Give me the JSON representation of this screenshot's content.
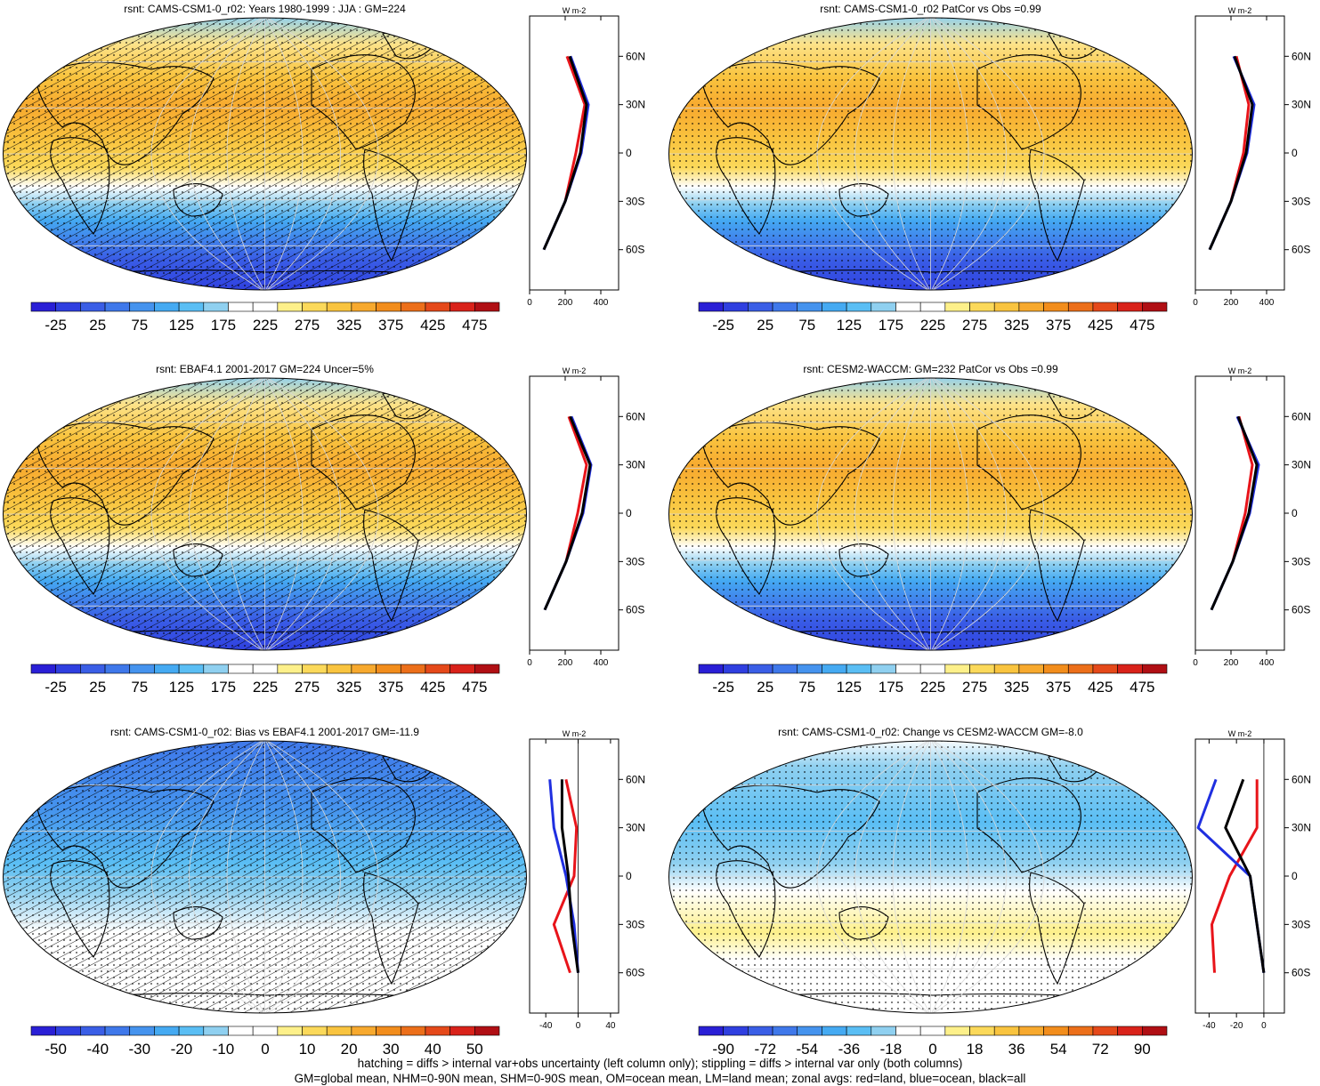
{
  "panels": [
    {
      "title": "rsnt: CAMS-CSM1-0_r02: Years 1980-1999 : JJA : GM=224",
      "kind": "abs",
      "hatch": true,
      "colorbar_labels": [
        "-25",
        "25",
        "75",
        "125",
        "175",
        "225",
        "275",
        "325",
        "375",
        "425",
        "475"
      ],
      "zonal": {
        "xticks": [
          "0",
          "200",
          "400"
        ],
        "unit": "W m-2"
      }
    },
    {
      "title": "rsnt: CAMS-CSM1-0_r02 PatCor vs Obs =0.99",
      "kind": "abs",
      "hatch": false,
      "colorbar_labels": [
        "-25",
        "25",
        "75",
        "125",
        "175",
        "225",
        "275",
        "325",
        "375",
        "425",
        "475"
      ],
      "zonal": {
        "xticks": [
          "0",
          "200",
          "400"
        ],
        "unit": "W m-2"
      }
    },
    {
      "title": "rsnt: EBAF4.1 2001-2017 GM=224 Uncer=5%",
      "kind": "abs",
      "hatch": true,
      "colorbar_labels": [
        "-25",
        "25",
        "75",
        "125",
        "175",
        "225",
        "275",
        "325",
        "375",
        "425",
        "475"
      ],
      "zonal": {
        "xticks": [
          "0",
          "200",
          "400"
        ],
        "unit": "W m-2"
      }
    },
    {
      "title": "rsnt: CESM2-WACCM: GM=232 PatCor vs Obs =0.99",
      "kind": "abs",
      "hatch": false,
      "colorbar_labels": [
        "-25",
        "25",
        "75",
        "125",
        "175",
        "225",
        "275",
        "325",
        "375",
        "425",
        "475"
      ],
      "zonal": {
        "xticks": [
          "0",
          "200",
          "400"
        ],
        "unit": "W m-2"
      }
    },
    {
      "title": "rsnt: CAMS-CSM1-0_r02: Bias vs EBAF4.1 2001-2017 GM=-11.9",
      "kind": "bias",
      "hatch": true,
      "colorbar_labels": [
        "-50",
        "-40",
        "-30",
        "-20",
        "-10",
        "0",
        "10",
        "20",
        "30",
        "40",
        "50"
      ],
      "zonal": {
        "xticks": [
          "-40",
          "0",
          "40"
        ],
        "unit": "W m-2"
      }
    },
    {
      "title": "rsnt: CAMS-CSM1-0_r02: Change vs CESM2-WACCM GM=-8.0",
      "kind": "change",
      "hatch": false,
      "colorbar_labels": [
        "-90",
        "-72",
        "-54",
        "-36",
        "-18",
        "0",
        "18",
        "36",
        "54",
        "72",
        "90"
      ],
      "zonal": {
        "xticks": [
          "-40",
          "-20",
          "0"
        ],
        "unit": "W m-2"
      }
    }
  ],
  "lat_ticks": [
    "60N",
    "30N",
    "0",
    "30S",
    "60S"
  ],
  "footer": {
    "line1": "hatching = diffs > internal var+obs uncertainty (left column only); stippling = diffs > internal var only (both columns)",
    "line2": "GM=global mean, NHM=0-90N mean, SHM=0-90S mean, OM=ocean mean, LM=land mean; zonal avgs: red=land, blue=ocean, black=all"
  },
  "chart_data": [
    {
      "type": "line",
      "title": "rsnt: CAMS-CSM1-0_r02: Years 1980-1999 : JJA : GM=224",
      "xlabel": "W m-2",
      "xlim": [
        0,
        500
      ],
      "y": [
        "60N",
        "30N",
        "0",
        "30S",
        "60S"
      ],
      "series": [
        {
          "name": "land",
          "color": "#e8141a",
          "values": [
            210,
            310,
            260,
            200,
            null
          ]
        },
        {
          "name": "ocean",
          "color": "#1f2fe0",
          "values": [
            230,
            330,
            290,
            200,
            80
          ]
        },
        {
          "name": "all",
          "color": "#000000",
          "values": [
            225,
            320,
            285,
            200,
            80
          ]
        }
      ]
    },
    {
      "type": "line",
      "title": "rsnt: CAMS-CSM1-0_r02 PatCor vs Obs =0.99",
      "xlabel": "W m-2",
      "xlim": [
        0,
        500
      ],
      "y": [
        "60N",
        "30N",
        "0",
        "30S",
        "60S"
      ],
      "series": [
        {
          "name": "land",
          "color": "#e8141a",
          "values": [
            230,
            300,
            270,
            200,
            null
          ]
        },
        {
          "name": "ocean",
          "color": "#1f2fe0",
          "values": [
            215,
            330,
            290,
            200,
            80
          ]
        },
        {
          "name": "all",
          "color": "#000000",
          "values": [
            220,
            320,
            285,
            200,
            80
          ]
        }
      ]
    },
    {
      "type": "line",
      "title": "rsnt: EBAF4.1 2001-2017 GM=224 Uncer=5%",
      "xlabel": "W m-2",
      "xlim": [
        0,
        500
      ],
      "y": [
        "60N",
        "30N",
        "0",
        "30S",
        "60S"
      ],
      "series": [
        {
          "name": "land",
          "color": "#e8141a",
          "values": [
            220,
            320,
            270,
            205,
            null
          ]
        },
        {
          "name": "ocean",
          "color": "#1f2fe0",
          "values": [
            235,
            345,
            300,
            205,
            85
          ]
        },
        {
          "name": "all",
          "color": "#000000",
          "values": [
            228,
            340,
            295,
            205,
            85
          ]
        }
      ]
    },
    {
      "type": "line",
      "title": "rsnt: CESM2-WACCM: GM=232 PatCor vs Obs =0.99",
      "xlabel": "W m-2",
      "xlim": [
        0,
        500
      ],
      "y": [
        "60N",
        "30N",
        "0",
        "30S",
        "60S"
      ],
      "series": [
        {
          "name": "land",
          "color": "#e8141a",
          "values": [
            245,
            320,
            280,
            210,
            null
          ]
        },
        {
          "name": "ocean",
          "color": "#1f2fe0",
          "values": [
            235,
            355,
            305,
            210,
            90
          ]
        },
        {
          "name": "all",
          "color": "#000000",
          "values": [
            240,
            345,
            300,
            210,
            90
          ]
        }
      ]
    },
    {
      "type": "line",
      "title": "rsnt: CAMS-CSM1-0_r02: Bias vs EBAF4.1 2001-2017 GM=-11.9",
      "xlabel": "W m-2",
      "xlim": [
        -60,
        50
      ],
      "y": [
        "60N",
        "30N",
        "0",
        "30S",
        "60S"
      ],
      "series": [
        {
          "name": "land",
          "color": "#e8141a",
          "values": [
            -15,
            -2,
            -5,
            -30,
            -10
          ]
        },
        {
          "name": "ocean",
          "color": "#1f2fe0",
          "values": [
            -35,
            -30,
            -15,
            -5,
            0
          ]
        },
        {
          "name": "all",
          "color": "#000000",
          "values": [
            -20,
            -20,
            -12,
            -8,
            0
          ]
        }
      ]
    },
    {
      "type": "line",
      "title": "rsnt: CAMS-CSM1-0_r02: Change vs CESM2-WACCM GM=-8.0",
      "xlabel": "W m-2",
      "xlim": [
        -50,
        15
      ],
      "y": [
        "60N",
        "30N",
        "0",
        "30S",
        "60S"
      ],
      "series": [
        {
          "name": "land",
          "color": "#e8141a",
          "values": [
            -5,
            -5,
            -25,
            -38,
            -36
          ]
        },
        {
          "name": "ocean",
          "color": "#1f2fe0",
          "values": [
            -35,
            -48,
            -10,
            -5,
            0
          ]
        },
        {
          "name": "all",
          "color": "#000000",
          "values": [
            -15,
            -28,
            -10,
            -5,
            0
          ]
        }
      ]
    }
  ]
}
